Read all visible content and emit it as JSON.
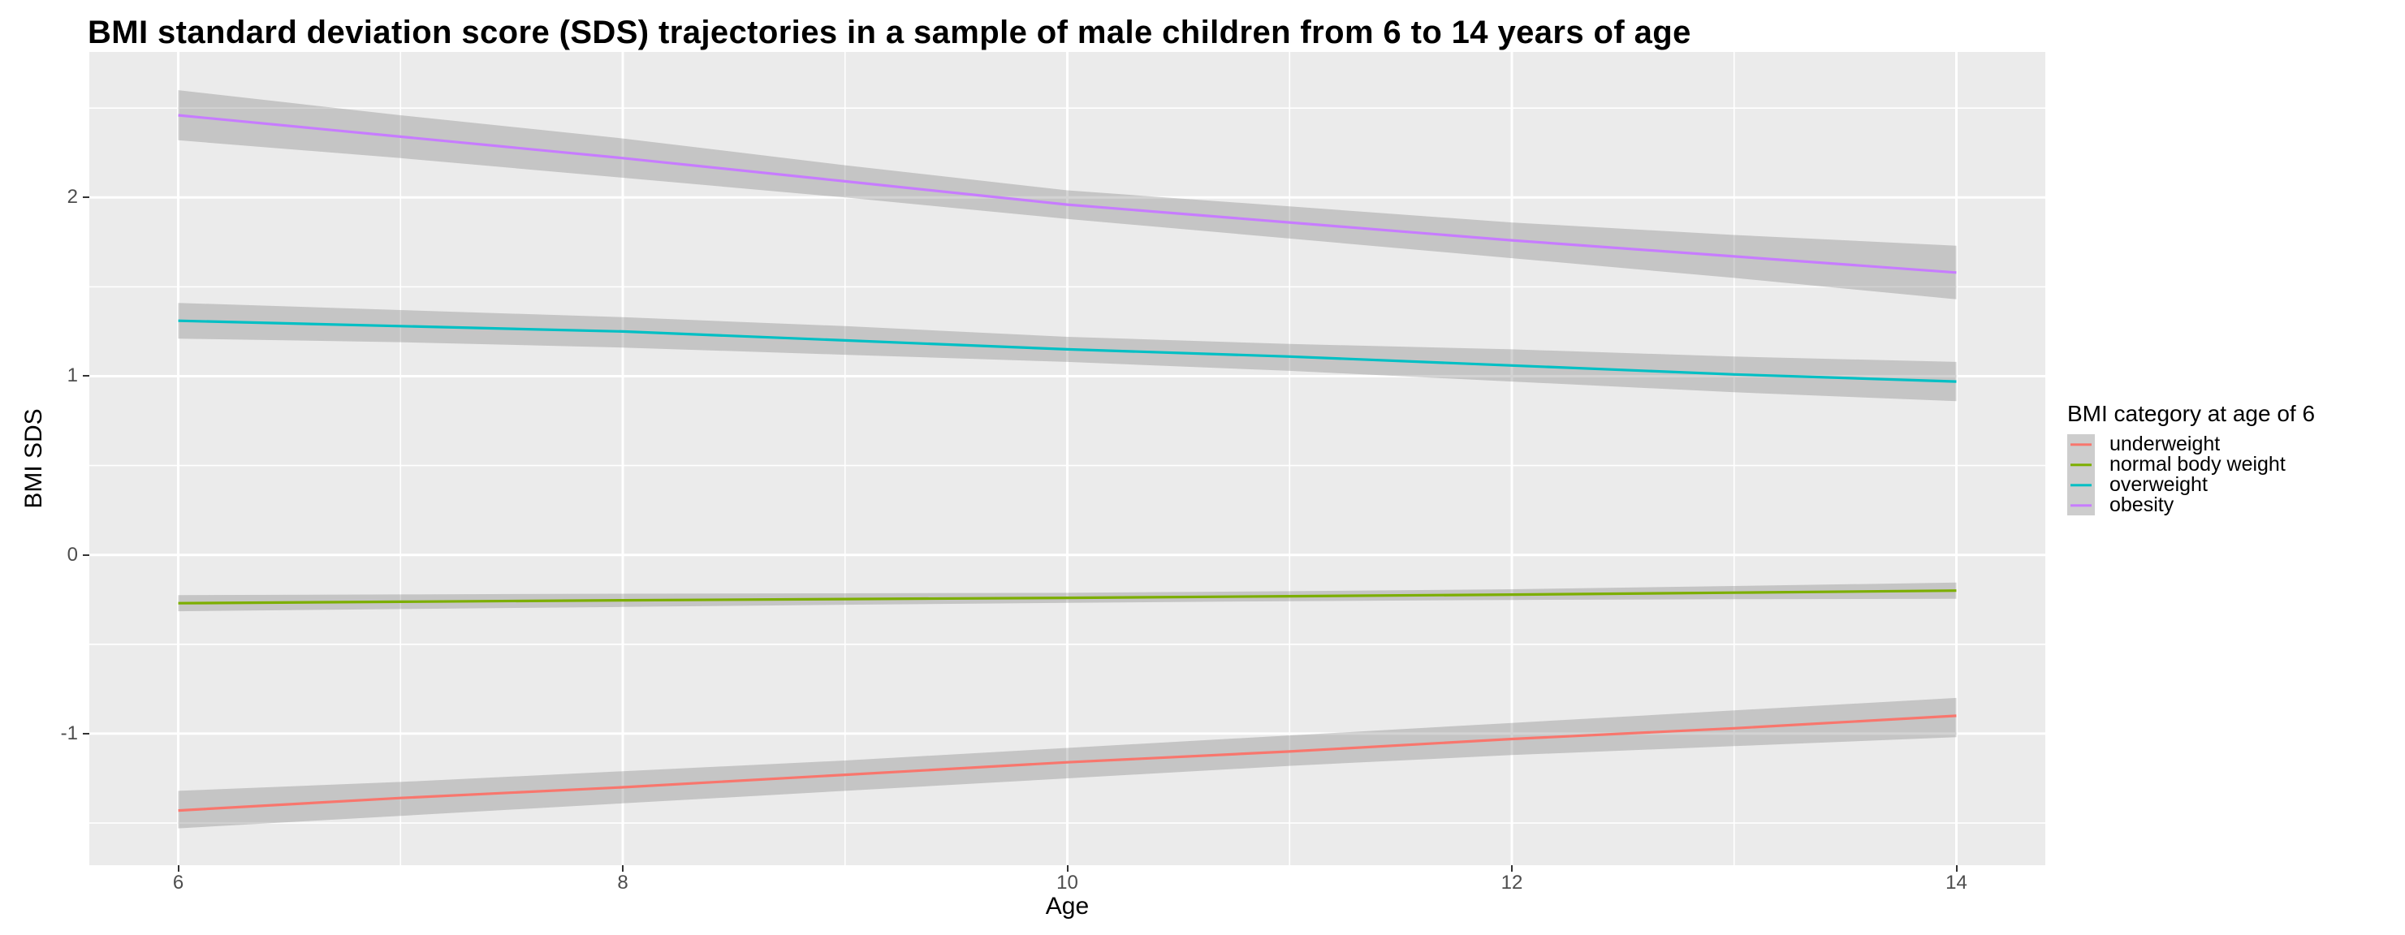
{
  "title": "BMI standard deviation score (SDS) trajectories in a sample of male children from 6 to 14 years of age",
  "x_axis": {
    "label": "Age",
    "ticks": [
      "6",
      "8",
      "10",
      "12",
      "14"
    ]
  },
  "y_axis": {
    "label": "BMI SDS",
    "ticks": [
      "2",
      "1",
      "0",
      "-1"
    ]
  },
  "legend": {
    "title": "BMI category at age of 6",
    "items": [
      {
        "label": "underweight",
        "color": "#F8766D"
      },
      {
        "label": "normal body weight",
        "color": "#7CAE00"
      },
      {
        "label": "overweight",
        "color": "#00BFC4"
      },
      {
        "label": "obesity",
        "color": "#C77CFF"
      }
    ]
  },
  "colors": {
    "panel_background": "#EBEBEB",
    "gridline": "#FFFFFF",
    "ribbon_fill": "rgba(108,108,108,0.30)",
    "tick_mark": "#333333",
    "tick_text": "#4D4D4D"
  },
  "chart_data": {
    "type": "line",
    "title": "BMI standard deviation score (SDS) trajectories in a sample of male children from 6 to 14 years of age",
    "xlabel": "Age",
    "ylabel": "BMI SDS",
    "x": [
      6,
      7,
      8,
      9,
      10,
      11,
      12,
      13,
      14
    ],
    "xlim": [
      5.6,
      14.4
    ],
    "ylim": [
      -1.736,
      2.814
    ],
    "x_major_ticks": [
      6,
      8,
      10,
      12,
      14
    ],
    "x_minor_ticks": [
      7,
      9,
      11,
      13
    ],
    "y_major_ticks": [
      2,
      1,
      0,
      -1
    ],
    "y_minor_ticks": [
      2.5,
      1.5,
      0.5,
      -0.5,
      -1.5
    ],
    "grid": true,
    "legend_position": "right",
    "series": [
      {
        "name": "underweight",
        "color": "#F8766D",
        "values": [
          -1.43,
          -1.36,
          -1.3,
          -1.23,
          -1.16,
          -1.1,
          -1.03,
          -0.97,
          -0.9
        ],
        "lower": [
          -1.53,
          -1.46,
          -1.39,
          -1.32,
          -1.25,
          -1.18,
          -1.12,
          -1.07,
          -1.02
        ],
        "upper": [
          -1.32,
          -1.27,
          -1.21,
          -1.15,
          -1.08,
          -1.01,
          -0.94,
          -0.87,
          -0.8
        ]
      },
      {
        "name": "normal body weight",
        "color": "#7CAE00",
        "values": [
          -0.27,
          -0.262,
          -0.254,
          -0.247,
          -0.24,
          -0.231,
          -0.222,
          -0.211,
          -0.2
        ],
        "lower": [
          -0.315,
          -0.303,
          -0.291,
          -0.279,
          -0.268,
          -0.259,
          -0.252,
          -0.248,
          -0.245
        ],
        "upper": [
          -0.225,
          -0.221,
          -0.217,
          -0.215,
          -0.212,
          -0.203,
          -0.192,
          -0.174,
          -0.155
        ]
      },
      {
        "name": "overweight",
        "color": "#00BFC4",
        "values": [
          1.31,
          1.28,
          1.25,
          1.2,
          1.15,
          1.11,
          1.06,
          1.01,
          0.97
        ],
        "lower": [
          1.21,
          1.19,
          1.16,
          1.12,
          1.08,
          1.03,
          0.97,
          0.91,
          0.86
        ],
        "upper": [
          1.41,
          1.37,
          1.33,
          1.28,
          1.22,
          1.18,
          1.15,
          1.11,
          1.08
        ]
      },
      {
        "name": "obesity",
        "color": "#C77CFF",
        "values": [
          2.46,
          2.34,
          2.22,
          2.09,
          1.96,
          1.86,
          1.76,
          1.67,
          1.58
        ],
        "lower": [
          2.32,
          2.22,
          2.11,
          2.0,
          1.88,
          1.77,
          1.66,
          1.55,
          1.43
        ],
        "upper": [
          2.6,
          2.46,
          2.33,
          2.18,
          2.04,
          1.95,
          1.86,
          1.79,
          1.73
        ]
      }
    ]
  }
}
